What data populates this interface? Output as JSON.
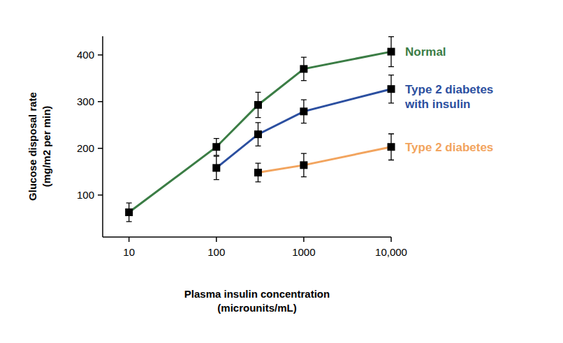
{
  "chart_data": {
    "type": "line",
    "log": "x",
    "x_label": [
      "Plasma insulin concentration",
      "(microunits/mL)"
    ],
    "y_label": [
      "Glucose disposal rate",
      "(mg/m2 per min)"
    ],
    "xlim": [
      5,
      10000
    ],
    "xticks": [
      10,
      100,
      1000,
      {
        "value": 10000,
        "label": "10,000"
      }
    ],
    "ylim": [
      10,
      440
    ],
    "yticks": [
      100,
      200,
      300,
      400
    ],
    "grid": false,
    "marker": "square",
    "series": [
      {
        "name": "Normal",
        "color": "#3b7d45",
        "x": [
          10,
          100,
          300,
          1000,
          10000
        ],
        "values": [
          63,
          203,
          293,
          370,
          407
        ],
        "errors": [
          20,
          18,
          27,
          25,
          32
        ]
      },
      {
        "name": "Type 2 diabetes with insulin",
        "color": "#2b4fa0",
        "x": [
          100,
          300,
          1000,
          10000
        ],
        "values": [
          158,
          230,
          279,
          327
        ],
        "errors": [
          25,
          25,
          25,
          30
        ]
      },
      {
        "name": "Type 2 diabetes",
        "color": "#f2a45e",
        "x": [
          300,
          1000,
          10000
        ],
        "values": [
          148,
          164,
          203
        ],
        "errors": [
          20,
          25,
          28
        ]
      }
    ]
  }
}
